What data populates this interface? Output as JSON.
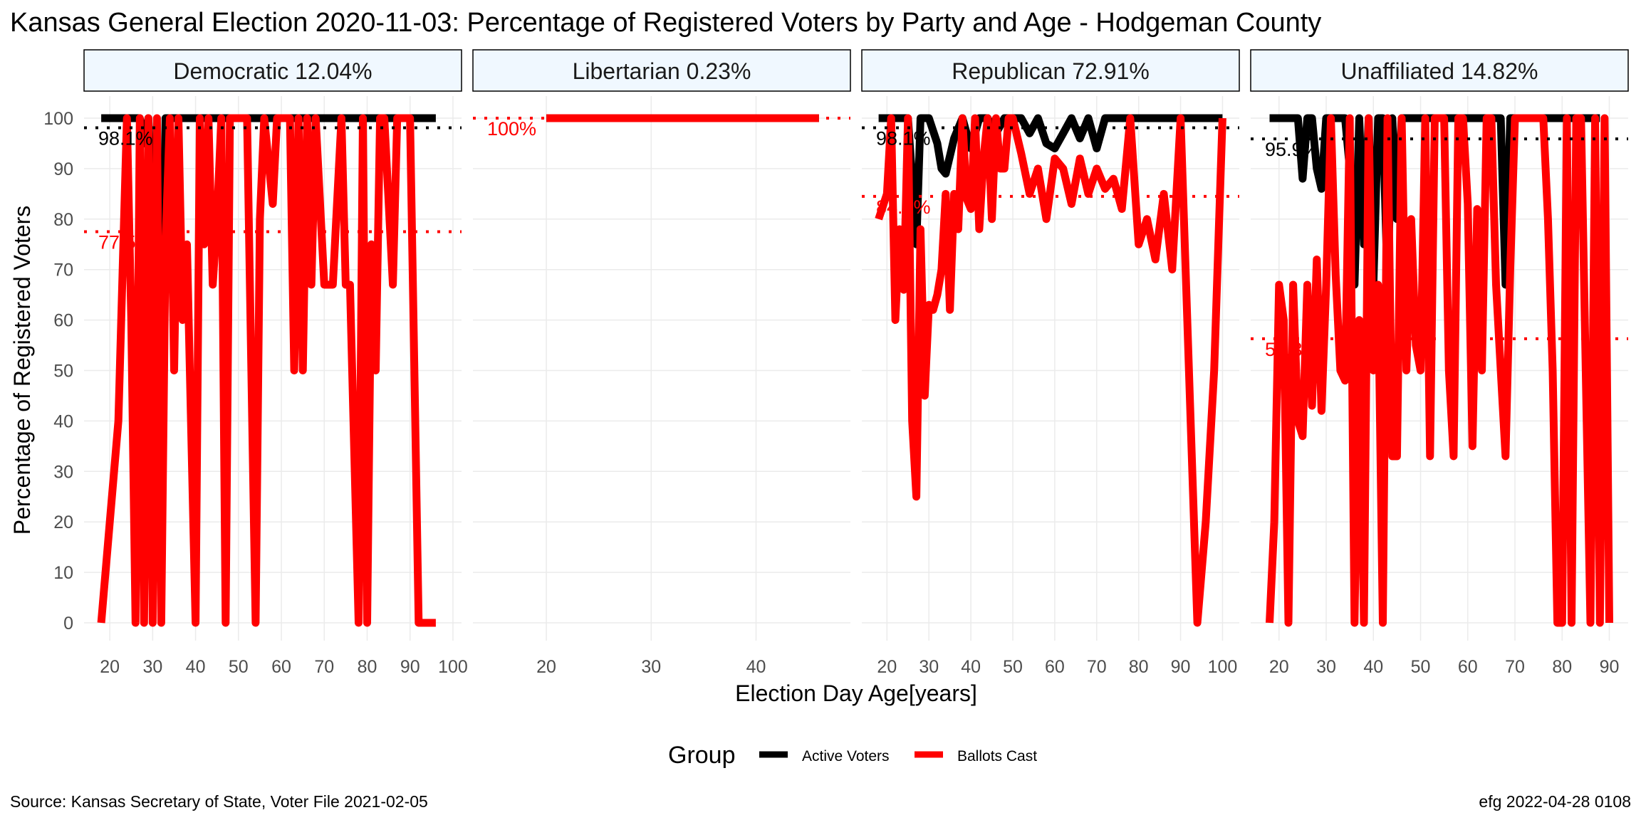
{
  "title": "Kansas General Election 2020-11-03:  Percentage of Registered Voters by Party and Age - Hodgeman County",
  "xlabel": "Election Day Age[years]",
  "ylabel": "Percentage of Registered Voters",
  "legend": {
    "title": "Group",
    "position": "bottom",
    "items": [
      {
        "label": "Active Voters",
        "color": "#000000"
      },
      {
        "label": "Ballots Cast",
        "color": "#ff0000"
      }
    ]
  },
  "source": "Source:  Kansas Secretary of State, Voter File  2021-02-05",
  "credit": "efg 2022-04-28 0108",
  "colors": {
    "active": "#000000",
    "ballots": "#ff0000",
    "strip_fill": "#f0f8ff",
    "grid": "#ebebeb"
  },
  "chart_data": {
    "type": "line",
    "ylim": [
      0,
      100
    ],
    "yticks": [
      0,
      10,
      20,
      30,
      40,
      50,
      60,
      70,
      80,
      90,
      100
    ],
    "grid": true,
    "panels": [
      {
        "name": "Democratic 12.04%",
        "xlim": [
          14,
          102
        ],
        "xticks": [
          20,
          30,
          40,
          50,
          60,
          70,
          80,
          90,
          100
        ],
        "active_ref": {
          "value": 98.1,
          "label": "98.1%"
        },
        "ballots_ref": {
          "value": 77.5,
          "label": "77.5%"
        },
        "series": [
          {
            "name": "Active Voters",
            "x": [
              18,
              22,
              26,
              27,
              28,
              29,
              30,
              31,
              32,
              33,
              34,
              36,
              40,
              44,
              48,
              52,
              56,
              60,
              64,
              68,
              72,
              76,
              80,
              84,
              88,
              92,
              96
            ],
            "y": [
              100,
              100,
              100,
              100,
              95,
              100,
              80,
              70,
              50,
              100,
              100,
              100,
              100,
              100,
              100,
              100,
              100,
              100,
              100,
              100,
              100,
              100,
              100,
              100,
              100,
              100,
              100
            ]
          },
          {
            "name": "Ballots Cast",
            "x": [
              18,
              22,
              24,
              25,
              26,
              27,
              28,
              29,
              30,
              31,
              32,
              33,
              34,
              35,
              36,
              37,
              38,
              40,
              41,
              42,
              43,
              44,
              45,
              46,
              47,
              48,
              49,
              50,
              52,
              54,
              55,
              56,
              58,
              59,
              60,
              62,
              63,
              64,
              65,
              66,
              67,
              68,
              70,
              72,
              74,
              75,
              76,
              78,
              79,
              80,
              81,
              82,
              83,
              84,
              86,
              87,
              88,
              90,
              91,
              92,
              93,
              94,
              95,
              96
            ],
            "y": [
              0,
              40,
              100,
              60,
              0,
              100,
              0,
              100,
              0,
              100,
              0,
              75,
              100,
              50,
              100,
              60,
              75,
              0,
              100,
              75,
              100,
              67,
              80,
              100,
              0,
              100,
              100,
              100,
              100,
              0,
              80,
              100,
              83,
              100,
              100,
              100,
              50,
              100,
              50,
              100,
              67,
              100,
              67,
              67,
              100,
              67,
              67,
              0,
              100,
              0,
              75,
              50,
              100,
              100,
              67,
              100,
              100,
              100,
              50,
              0,
              0,
              0,
              0,
              0
            ]
          }
        ]
      },
      {
        "name": "Libertarian 0.23%",
        "xlim": [
          13,
          49
        ],
        "xticks": [
          20,
          30,
          40
        ],
        "active_ref": {
          "value": 100,
          "label": "100%"
        },
        "ballots_ref": {
          "value": 100,
          "label": "100%"
        },
        "series": [
          {
            "name": "Active Voters",
            "x": [
              20,
              46
            ],
            "y": [
              100,
              100
            ]
          },
          {
            "name": "Ballots Cast",
            "x": [
              20,
              46
            ],
            "y": [
              100,
              100
            ]
          }
        ]
      },
      {
        "name": "Republican 72.91%",
        "xlim": [
          14,
          104
        ],
        "xticks": [
          20,
          30,
          40,
          50,
          60,
          70,
          80,
          90,
          100
        ],
        "active_ref": {
          "value": 98.1,
          "label": "98.1%"
        },
        "ballots_ref": {
          "value": 84.5,
          "label": "84.5%"
        },
        "series": [
          {
            "name": "Active Voters",
            "x": [
              18,
              22,
              25,
              26,
              27,
              28,
              30,
              32,
              33,
              34,
              36,
              38,
              40,
              42,
              44,
              46,
              48,
              50,
              52,
              54,
              56,
              58,
              60,
              62,
              64,
              66,
              68,
              70,
              72,
              74,
              76,
              80,
              85,
              90,
              95,
              100
            ],
            "y": [
              100,
              100,
              100,
              88,
              75,
              100,
              100,
              95,
              90,
              89,
              96,
              100,
              94,
              100,
              100,
              97,
              100,
              100,
              100,
              97,
              100,
              95,
              94,
              97,
              100,
              96,
              100,
              94,
              100,
              100,
              100,
              100,
              100,
              100,
              100,
              100
            ]
          },
          {
            "name": "Ballots Cast",
            "x": [
              18,
              20,
              21,
              22,
              23,
              24,
              25,
              26,
              27,
              28,
              29,
              30,
              31,
              32,
              33,
              34,
              35,
              36,
              37,
              38,
              39,
              40,
              41,
              42,
              43,
              44,
              45,
              46,
              47,
              48,
              49,
              50,
              52,
              54,
              56,
              58,
              60,
              62,
              64,
              66,
              68,
              70,
              72,
              74,
              76,
              78,
              80,
              82,
              84,
              86,
              88,
              90,
              92,
              94,
              96,
              98,
              100
            ],
            "y": [
              80,
              85,
              100,
              60,
              78,
              66,
              100,
              40,
              25,
              78,
              45,
              63,
              62,
              65,
              70,
              85,
              62,
              85,
              78,
              100,
              84,
              82,
              100,
              78,
              92,
              100,
              80,
              100,
              90,
              90,
              100,
              100,
              93,
              85,
              90,
              80,
              92,
              90,
              83,
              92,
              85,
              90,
              86,
              88,
              82,
              100,
              75,
              80,
              72,
              85,
              70,
              100,
              50,
              0,
              20,
              50,
              100
            ]
          }
        ]
      },
      {
        "name": "Unaffiliated 14.82%",
        "xlim": [
          14,
          94
        ],
        "xticks": [
          20,
          30,
          40,
          50,
          60,
          70,
          80,
          90
        ],
        "active_ref": {
          "value": 95.9,
          "label": "95.9%"
        },
        "ballots_ref": {
          "value": 56.3,
          "label": "56.3%"
        },
        "series": [
          {
            "name": "Active Voters",
            "x": [
              18,
              22,
              24,
              25,
              26,
              27,
              28,
              29,
              30,
              32,
              34,
              35,
              36,
              37,
              38,
              39,
              40,
              41,
              42,
              43,
              44,
              45,
              46,
              48,
              50,
              55,
              60,
              65,
              67,
              68,
              69,
              70,
              75,
              80,
              85,
              88
            ],
            "y": [
              100,
              100,
              100,
              88,
              100,
              100,
              90,
              86,
              100,
              100,
              100,
              90,
              67,
              100,
              75,
              100,
              67,
              100,
              100,
              67,
              100,
              80,
              100,
              100,
              100,
              100,
              100,
              100,
              100,
              67,
              100,
              100,
              100,
              100,
              100,
              100
            ],
            "note": ""
          },
          {
            "name": "Ballots Cast",
            "x": [
              18,
              19,
              20,
              21,
              22,
              23,
              24,
              25,
              26,
              27,
              28,
              29,
              30,
              31,
              32,
              33,
              34,
              35,
              36,
              37,
              38,
              39,
              40,
              41,
              42,
              43,
              44,
              45,
              46,
              47,
              48,
              49,
              50,
              51,
              52,
              53,
              54,
              55,
              56,
              57,
              58,
              59,
              60,
              61,
              62,
              63,
              64,
              65,
              66,
              67,
              68,
              69,
              70,
              72,
              74,
              76,
              77,
              78,
              79,
              80,
              81,
              82,
              83,
              84,
              86,
              87,
              88,
              89,
              90
            ],
            "y": [
              0,
              20,
              67,
              60,
              0,
              67,
              40,
              37,
              67,
              43,
              72,
              42,
              67,
              100,
              69,
              50,
              48,
              100,
              0,
              60,
              0,
              100,
              50,
              67,
              0,
              100,
              33,
              33,
              100,
              50,
              80,
              55,
              50,
              100,
              33,
              100,
              100,
              100,
              50,
              33,
              100,
              100,
              83,
              35,
              82,
              50,
              100,
              100,
              67,
              50,
              33,
              70,
              100,
              100,
              100,
              100,
              80,
              50,
              0,
              0,
              100,
              0,
              100,
              100,
              0,
              100,
              0,
              100,
              0
            ]
          }
        ]
      }
    ]
  }
}
